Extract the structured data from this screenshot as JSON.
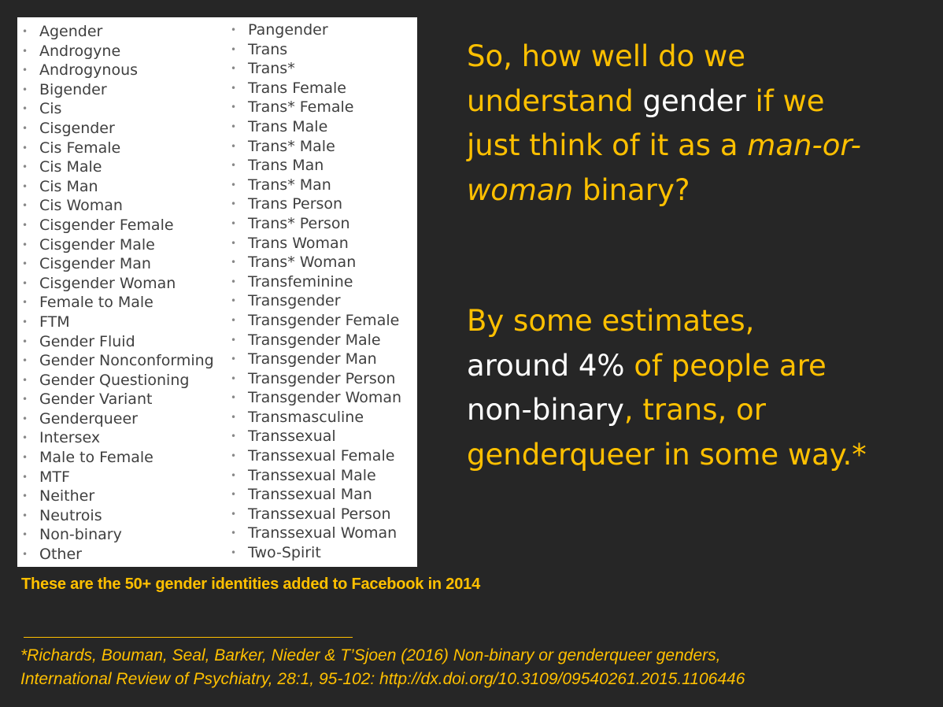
{
  "colors": {
    "background": "#262626",
    "accent": "#FFC000",
    "highlight": "#FFFFFF",
    "list_text": "#3f3f3f"
  },
  "list": {
    "bullet": "•",
    "column1": [
      "Agender",
      "Androgyne",
      "Androgynous",
      "Bigender",
      "Cis",
      "Cisgender",
      "Cis Female",
      "Cis Male",
      "Cis Man",
      "Cis Woman",
      "Cisgender Female",
      "Cisgender Male",
      "Cisgender Man",
      "Cisgender Woman",
      "Female to Male",
      "FTM",
      "Gender Fluid",
      "Gender Nonconforming",
      "Gender Questioning",
      "Gender Variant",
      "Genderqueer",
      "Intersex",
      "Male to Female",
      "MTF",
      "Neither",
      "Neutrois",
      "Non-binary",
      "Other"
    ],
    "column2": [
      "Pangender",
      "Trans",
      "Trans*",
      "Trans Female",
      "Trans* Female",
      "Trans Male",
      "Trans* Male",
      "Trans Man",
      "Trans* Man",
      "Trans Person",
      "Trans* Person",
      "Trans Woman",
      "Trans* Woman",
      "Transfeminine",
      "Transgender",
      "Transgender Female",
      "Transgender Male",
      "Transgender Man",
      "Transgender Person",
      "Transgender Woman",
      "Transmasculine",
      "Transsexual",
      "Transsexual Female",
      "Transsexual Male",
      "Transsexual Man",
      "Transsexual Person",
      "Transsexual Woman",
      "Two-Spirit"
    ]
  },
  "question": {
    "l1": "So, how well do we",
    "l2a": "understand ",
    "l2b": "gender",
    "l2c": " if we",
    "l3a": "just think of it as a ",
    "l3b": "man-or-",
    "l4a": "woman",
    "l4b": " binary?"
  },
  "estimate": {
    "l1": "By some estimates,",
    "l2a": "around 4%",
    "l2b": " of people are",
    "l3a": "non-binary",
    "l3b": ", trans, or",
    "l4": "genderqueer in some way.*"
  },
  "caption": "These are the 50+ gender identities added to Facebook in 2014",
  "citation": {
    "line1": "*Richards, Bouman, Seal, Barker, Nieder & T’Sjoen (2016) Non-binary or genderqueer genders,",
    "line2": "International Review of Psychiatry, 28:1, 95-102: http://dx.doi.org/10.3109/09540261.2015.1106446"
  }
}
